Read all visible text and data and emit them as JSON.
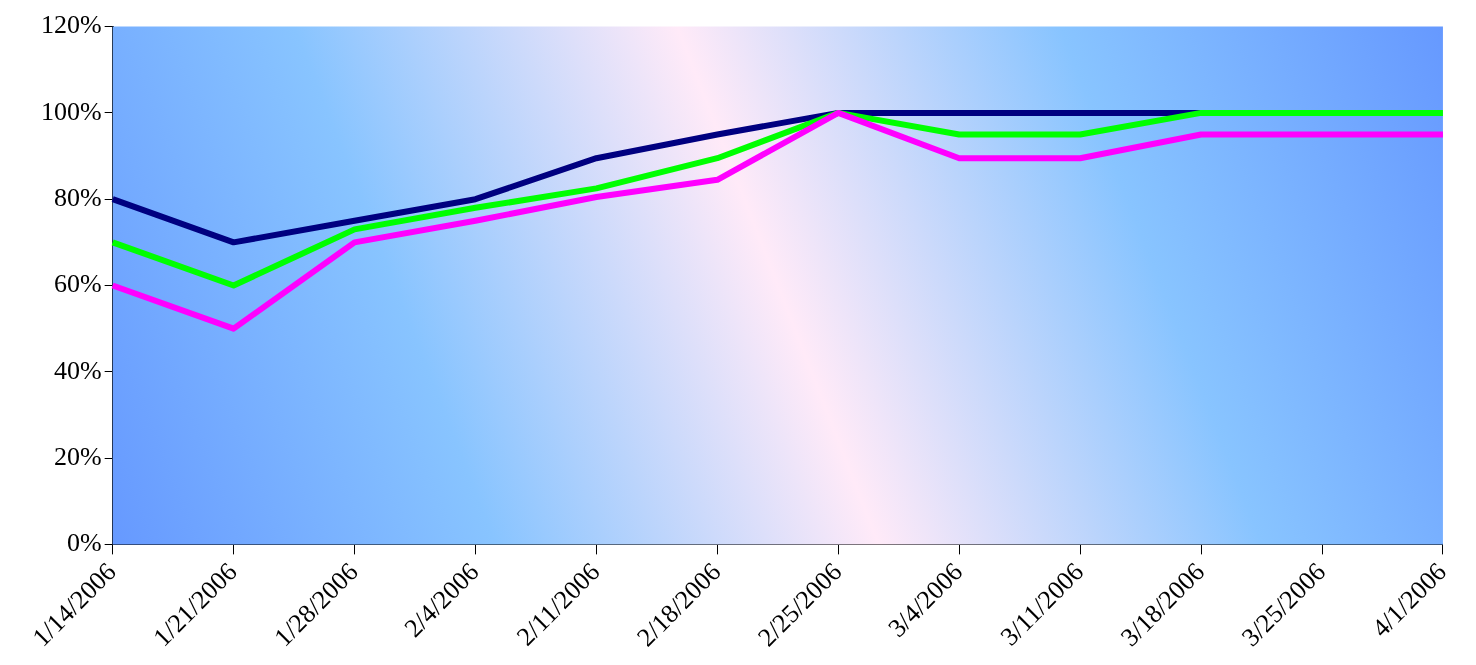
{
  "chart_data": {
    "type": "line",
    "categories": [
      "1/14/2006",
      "1/21/2006",
      "1/28/2006",
      "2/4/2006",
      "2/11/2006",
      "2/18/2006",
      "2/25/2006",
      "3/4/2006",
      "3/11/2006",
      "3/18/2006",
      "3/25/2006",
      "4/1/2006"
    ],
    "series": [
      {
        "color": "#000080",
        "values": [
          80,
          70,
          75,
          80,
          89.5,
          95,
          100,
          100,
          100,
          100,
          null,
          null
        ]
      },
      {
        "color": "#00ff00",
        "values": [
          70,
          60,
          73,
          78,
          82.5,
          89.5,
          100,
          95,
          95,
          100,
          100,
          100
        ]
      },
      {
        "color": "#ff00ff",
        "values": [
          60,
          50,
          70,
          75,
          80.5,
          84.5,
          100,
          89.5,
          89.5,
          95,
          95,
          95
        ]
      }
    ],
    "ylim": [
      0,
      120
    ],
    "yticks": [
      {
        "value": 0,
        "label": "0%"
      },
      {
        "value": 20,
        "label": "20%"
      },
      {
        "value": 40,
        "label": "40%"
      },
      {
        "value": 60,
        "label": "60%"
      },
      {
        "value": 80,
        "label": "80%"
      },
      {
        "value": 100,
        "label": "100%"
      },
      {
        "value": 120,
        "label": "120%"
      }
    ],
    "grid": false,
    "legend": false,
    "marker": "none",
    "line_style": "solid"
  }
}
